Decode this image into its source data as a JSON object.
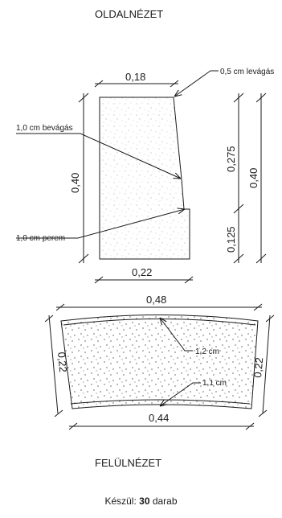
{
  "titles": {
    "side_view": "OLDALNÉZET",
    "top_view": "FELÜLNÉZET"
  },
  "side_view": {
    "top_width": "0,18",
    "bottom_width": "0,22",
    "left_height": "0,40",
    "right_upper": "0,275",
    "right_lower": "0,125",
    "right_total": "0,40",
    "callouts": {
      "cut_05": "0,5 cm levágás",
      "cut_10": "1,0 cm bevágás",
      "rim_10": "1,0 cm perem"
    }
  },
  "top_view": {
    "top_width": "0,48",
    "bottom_width": "0,44",
    "left_height": "0,22",
    "right_height": "0,22",
    "callouts": {
      "c12": "1,2 cm",
      "c11": "1,1 cm"
    }
  },
  "footer": {
    "prefix": "Készül: ",
    "quantity": "30",
    "suffix": " darab"
  }
}
